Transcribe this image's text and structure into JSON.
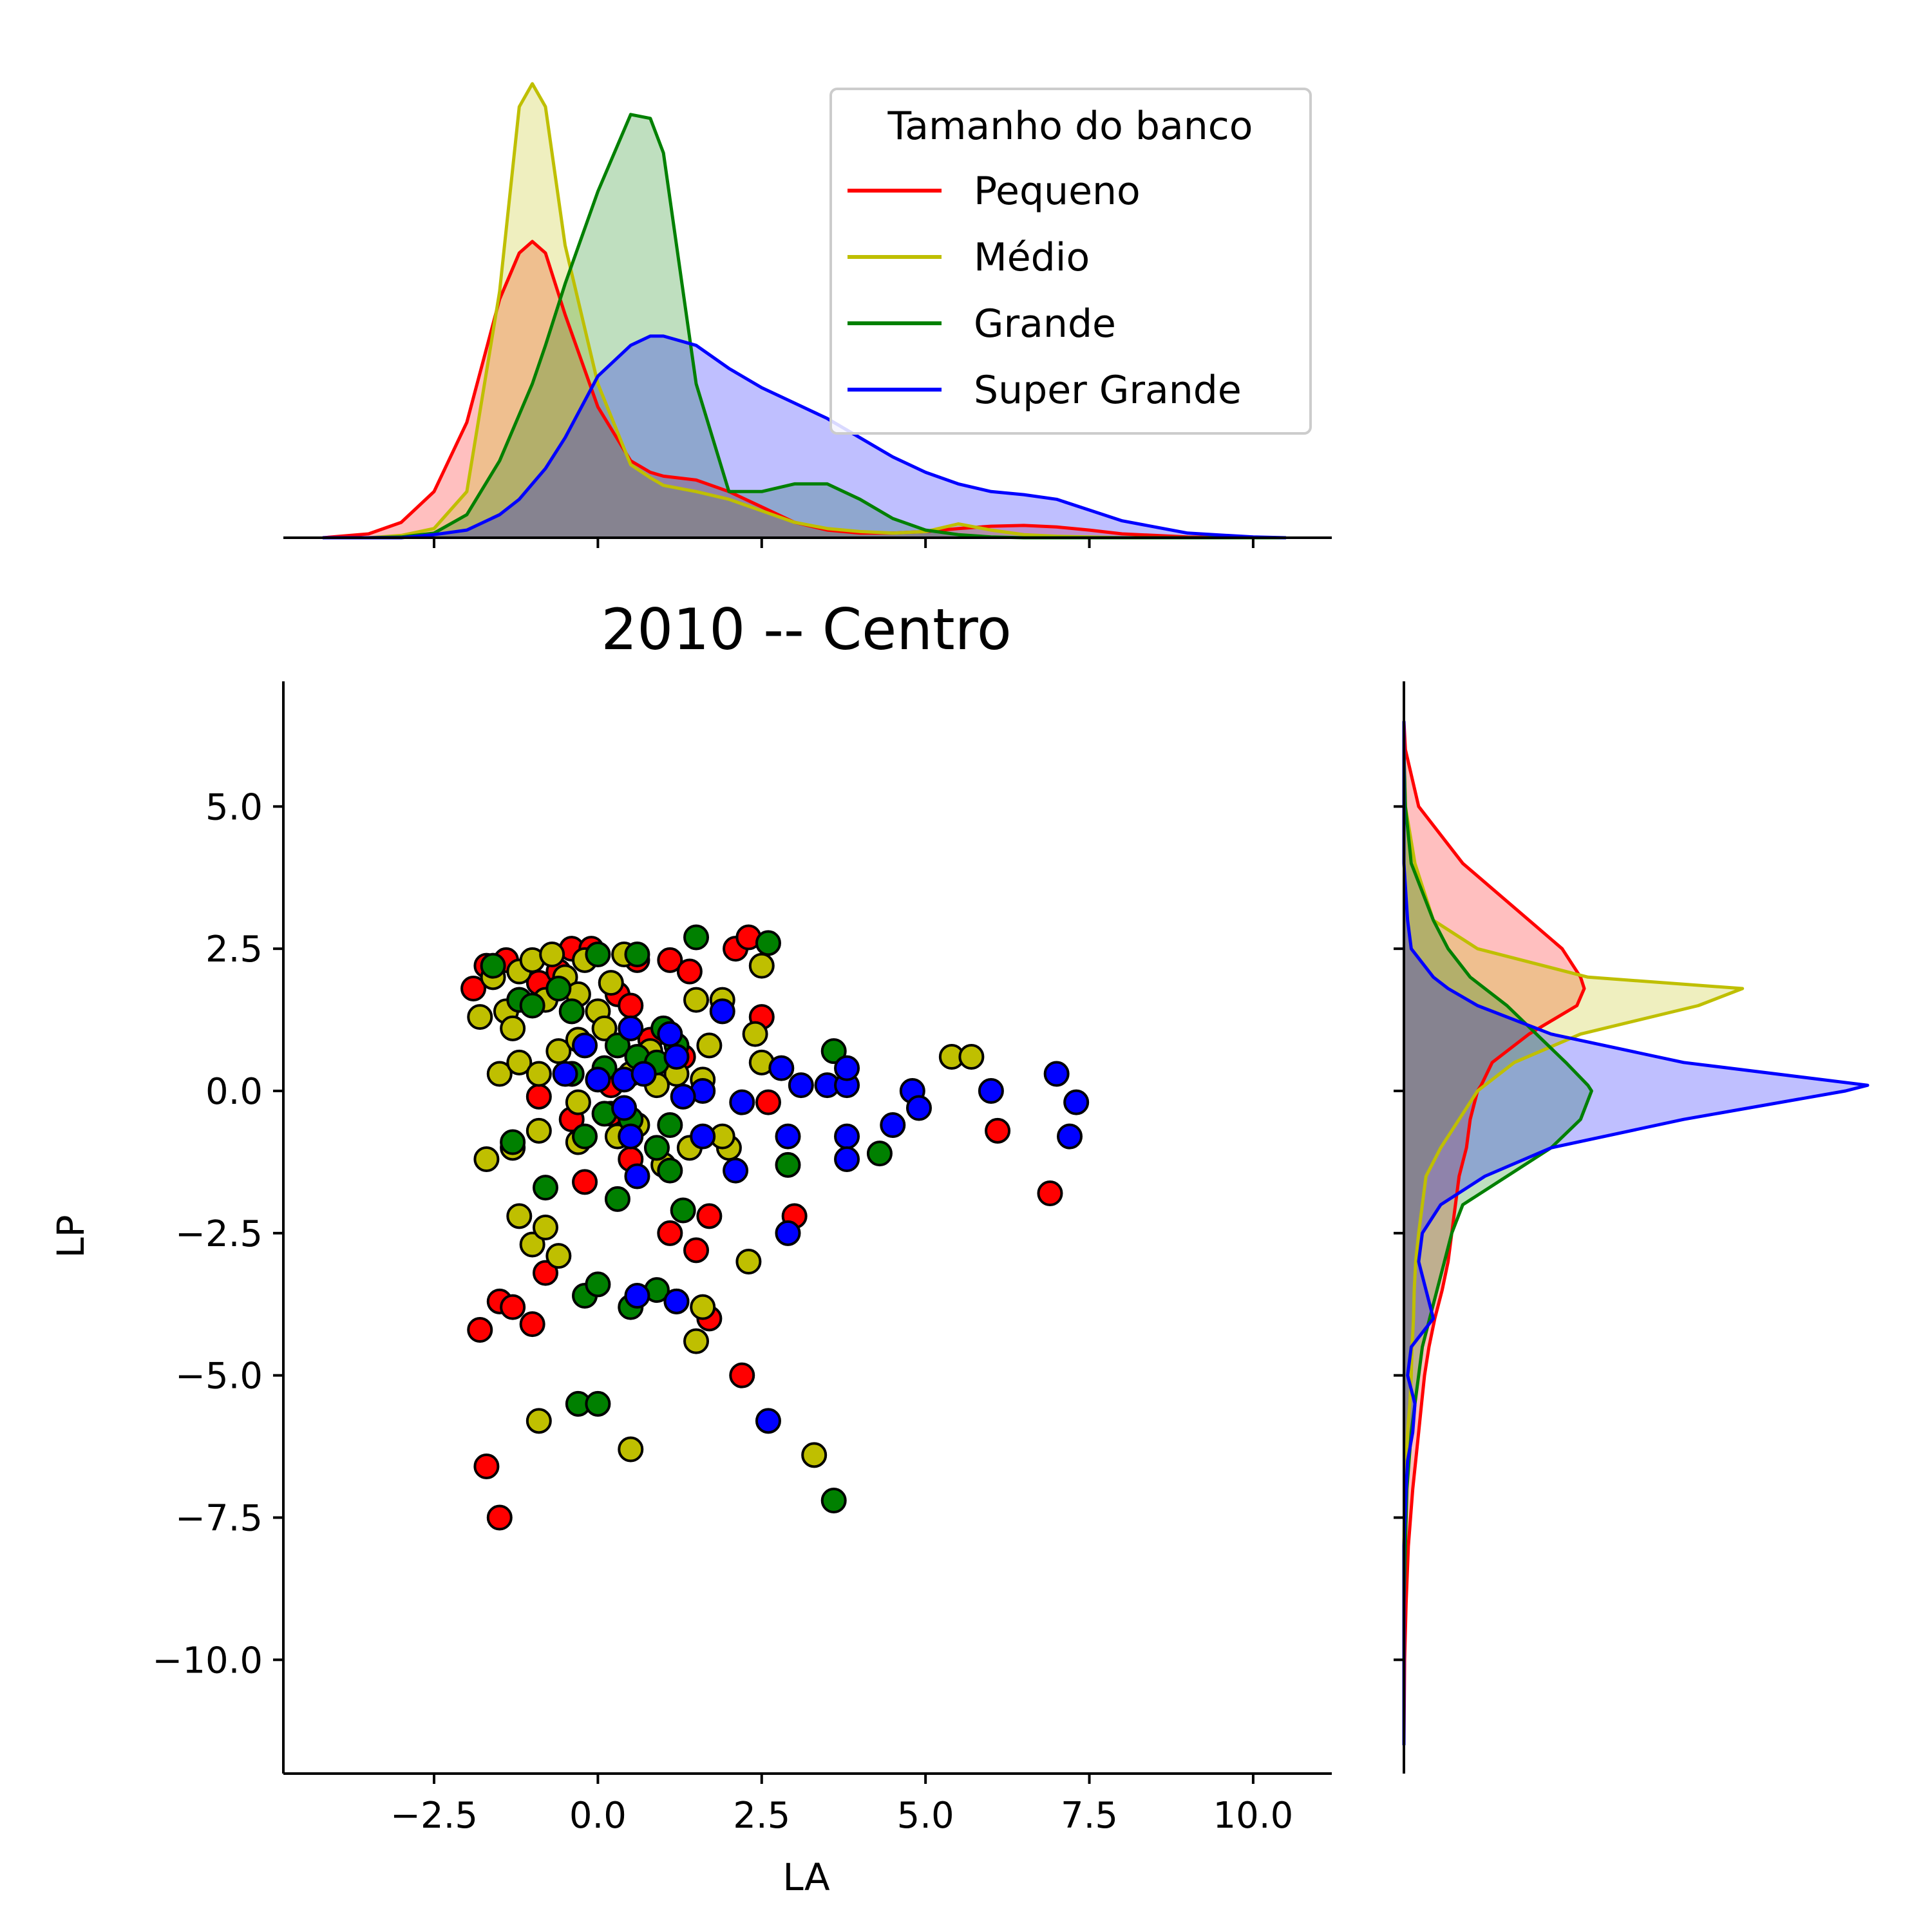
{
  "chart_data": {
    "type": "scatter",
    "title": "2010 -- Centro",
    "xlabel": "LA",
    "ylabel": "LP",
    "xlim": [
      -4.8,
      11.2
    ],
    "ylim": [
      -12.0,
      7.2
    ],
    "xticks": [
      -2.5,
      0.0,
      2.5,
      5.0,
      7.5,
      10.0
    ],
    "xtick_labels": [
      "−2.5",
      "0.0",
      "2.5",
      "5.0",
      "7.5",
      "10.0"
    ],
    "yticks": [
      5.0,
      2.5,
      0.0,
      -2.5,
      -5.0,
      -7.5,
      -10.0
    ],
    "ytick_labels": [
      "5.0",
      "2.5",
      "0.0",
      "−2.5",
      "−5.0",
      "−7.5",
      "−10.0"
    ],
    "grid": false,
    "legend": {
      "title": "Tamanho do banco",
      "placement": "top-right of top marginal"
    },
    "series": [
      {
        "name": "Pequeno",
        "color": "#ff0000",
        "points": [
          [
            -1.9,
            1.8
          ],
          [
            -1.7,
            2.2
          ],
          [
            -1.4,
            2.3
          ],
          [
            -1.2,
            1.6
          ],
          [
            -0.9,
            1.9
          ],
          [
            -0.6,
            2.1
          ],
          [
            -0.4,
            2.5
          ],
          [
            -0.1,
            2.5
          ],
          [
            0.3,
            1.7
          ],
          [
            0.5,
            1.5
          ],
          [
            0.6,
            2.3
          ],
          [
            1.1,
            2.3
          ],
          [
            1.4,
            2.1
          ],
          [
            2.1,
            2.5
          ],
          [
            2.3,
            2.7
          ],
          [
            2.5,
            1.3
          ],
          [
            -0.9,
            -0.1
          ],
          [
            -0.4,
            -0.5
          ],
          [
            -0.2,
            -1.6
          ],
          [
            0.2,
            -0.4
          ],
          [
            0.5,
            -1.2
          ],
          [
            1.1,
            -2.5
          ],
          [
            1.5,
            -2.8
          ],
          [
            1.7,
            -2.2
          ],
          [
            2.6,
            -0.2
          ],
          [
            3.0,
            -2.2
          ],
          [
            6.1,
            -0.7
          ],
          [
            6.9,
            -1.8
          ],
          [
            -1.8,
            -4.2
          ],
          [
            -1.5,
            -3.7
          ],
          [
            -1.3,
            -3.8
          ],
          [
            -1.0,
            -4.1
          ],
          [
            -0.8,
            -3.2
          ],
          [
            1.7,
            -4.0
          ],
          [
            2.2,
            -5.0
          ],
          [
            -1.7,
            -6.6
          ],
          [
            -1.5,
            -7.5
          ],
          [
            0.2,
            0.1
          ],
          [
            0.8,
            0.9
          ],
          [
            1.3,
            0.6
          ]
        ]
      },
      {
        "name": "Médio",
        "color": "#bfbf00",
        "points": [
          [
            -1.8,
            1.3
          ],
          [
            -1.6,
            2.0
          ],
          [
            -1.4,
            1.4
          ],
          [
            -1.3,
            1.1
          ],
          [
            -1.2,
            2.1
          ],
          [
            -1.0,
            2.3
          ],
          [
            -0.8,
            1.6
          ],
          [
            -0.7,
            2.4
          ],
          [
            -0.5,
            2.0
          ],
          [
            -0.3,
            1.7
          ],
          [
            -0.2,
            2.3
          ],
          [
            0.0,
            1.4
          ],
          [
            0.2,
            1.9
          ],
          [
            0.4,
            2.4
          ],
          [
            -1.5,
            0.3
          ],
          [
            -1.2,
            0.5
          ],
          [
            -0.9,
            0.3
          ],
          [
            -0.6,
            0.7
          ],
          [
            -0.3,
            0.9
          ],
          [
            0.1,
            1.1
          ],
          [
            0.5,
            0.3
          ],
          [
            0.8,
            0.7
          ],
          [
            1.2,
            0.3
          ],
          [
            1.6,
            0.2
          ],
          [
            1.7,
            0.8
          ],
          [
            1.9,
            1.6
          ],
          [
            2.4,
            1.0
          ],
          [
            2.5,
            0.5
          ],
          [
            2.5,
            2.2
          ],
          [
            1.5,
            1.6
          ],
          [
            -1.7,
            -1.2
          ],
          [
            -1.3,
            -1.0
          ],
          [
            -0.9,
            -0.7
          ],
          [
            -0.3,
            -0.9
          ],
          [
            -0.3,
            -0.2
          ],
          [
            0.3,
            -0.8
          ],
          [
            0.6,
            -0.6
          ],
          [
            1.0,
            -1.3
          ],
          [
            1.4,
            -1.0
          ],
          [
            2.0,
            -1.0
          ],
          [
            1.9,
            -0.8
          ],
          [
            -1.2,
            -2.2
          ],
          [
            -1.0,
            -2.7
          ],
          [
            -0.8,
            -2.4
          ],
          [
            -0.6,
            -2.9
          ],
          [
            2.3,
            -3.0
          ],
          [
            1.6,
            -3.8
          ],
          [
            1.5,
            -4.4
          ],
          [
            -0.9,
            -5.8
          ],
          [
            0.5,
            -6.3
          ],
          [
            3.3,
            -6.4
          ],
          [
            5.4,
            0.6
          ],
          [
            5.7,
            0.6
          ],
          [
            0.9,
            0.1
          ]
        ]
      },
      {
        "name": "Grande",
        "color": "#008000",
        "points": [
          [
            -1.6,
            2.2
          ],
          [
            -1.2,
            1.6
          ],
          [
            -1.0,
            1.5
          ],
          [
            -0.6,
            1.8
          ],
          [
            -0.4,
            1.4
          ],
          [
            0.0,
            2.4
          ],
          [
            0.6,
            2.4
          ],
          [
            1.0,
            1.1
          ],
          [
            1.5,
            2.7
          ],
          [
            2.6,
            2.6
          ],
          [
            0.3,
            0.8
          ],
          [
            0.6,
            0.6
          ],
          [
            1.2,
            0.8
          ],
          [
            0.9,
            0.5
          ],
          [
            -0.4,
            0.3
          ],
          [
            0.1,
            0.4
          ],
          [
            3.6,
            0.7
          ],
          [
            -1.3,
            -0.9
          ],
          [
            -0.2,
            -0.8
          ],
          [
            0.1,
            -0.4
          ],
          [
            0.5,
            -0.5
          ],
          [
            1.1,
            -0.6
          ],
          [
            1.1,
            -1.4
          ],
          [
            0.9,
            -1.0
          ],
          [
            0.3,
            -1.9
          ],
          [
            -0.8,
            -1.7
          ],
          [
            2.9,
            -1.3
          ],
          [
            4.3,
            -1.1
          ],
          [
            1.3,
            -2.1
          ],
          [
            -0.2,
            -3.6
          ],
          [
            0.0,
            -3.4
          ],
          [
            0.5,
            -3.8
          ],
          [
            0.9,
            -3.5
          ],
          [
            1.2,
            -3.7
          ],
          [
            -0.3,
            -5.5
          ],
          [
            0.0,
            -5.5
          ],
          [
            3.6,
            -7.2
          ]
        ]
      },
      {
        "name": "Super Grande",
        "color": "#0000ff",
        "points": [
          [
            -0.2,
            0.8
          ],
          [
            0.5,
            1.1
          ],
          [
            1.1,
            1.0
          ],
          [
            1.9,
            1.4
          ],
          [
            -0.5,
            0.3
          ],
          [
            0.0,
            0.2
          ],
          [
            0.4,
            0.2
          ],
          [
            0.7,
            0.3
          ],
          [
            1.2,
            0.6
          ],
          [
            1.6,
            0.0
          ],
          [
            2.2,
            -0.2
          ],
          [
            2.8,
            0.4
          ],
          [
            3.1,
            0.1
          ],
          [
            3.5,
            0.1
          ],
          [
            3.8,
            0.1
          ],
          [
            3.8,
            0.4
          ],
          [
            4.8,
            0.0
          ],
          [
            4.9,
            -0.3
          ],
          [
            6.0,
            0.0
          ],
          [
            7.0,
            0.3
          ],
          [
            7.3,
            -0.2
          ],
          [
            0.4,
            -0.3
          ],
          [
            0.5,
            -0.8
          ],
          [
            0.6,
            -1.5
          ],
          [
            1.3,
            -0.1
          ],
          [
            1.6,
            -0.8
          ],
          [
            2.1,
            -1.4
          ],
          [
            2.9,
            -0.8
          ],
          [
            3.8,
            -0.8
          ],
          [
            3.8,
            -1.2
          ],
          [
            4.5,
            -0.6
          ],
          [
            7.2,
            -0.8
          ],
          [
            2.9,
            -2.5
          ],
          [
            0.6,
            -3.6
          ],
          [
            1.2,
            -3.7
          ],
          [
            2.6,
            -5.8
          ]
        ]
      }
    ],
    "marginal_x_kde": {
      "x": [
        -4.2,
        -3.5,
        -3.0,
        -2.5,
        -2.0,
        -1.5,
        -1.2,
        -1.0,
        -0.8,
        -0.5,
        0.0,
        0.5,
        0.8,
        1.0,
        1.5,
        2.0,
        2.5,
        3.0,
        3.5,
        4.0,
        4.5,
        5.0,
        5.5,
        6.0,
        6.5,
        7.0,
        7.5,
        8.0,
        9.0,
        10.0,
        10.5
      ],
      "series": [
        {
          "name": "Pequeno",
          "color": "#ff0000",
          "fill": "rgba(255,0,0,0.25)",
          "density": [
            0.0,
            0.005,
            0.02,
            0.06,
            0.15,
            0.31,
            0.37,
            0.385,
            0.37,
            0.29,
            0.17,
            0.1,
            0.085,
            0.08,
            0.075,
            0.06,
            0.04,
            0.02,
            0.01,
            0.006,
            0.006,
            0.008,
            0.012,
            0.015,
            0.016,
            0.014,
            0.01,
            0.005,
            0.001,
            0.0,
            0.0
          ]
        },
        {
          "name": "Médio",
          "color": "#bfbf00",
          "fill": "rgba(191,191,0,0.25)",
          "density": [
            0.0,
            0.0,
            0.003,
            0.012,
            0.06,
            0.32,
            0.56,
            0.59,
            0.56,
            0.38,
            0.2,
            0.095,
            0.078,
            0.068,
            0.06,
            0.05,
            0.035,
            0.02,
            0.012,
            0.008,
            0.006,
            0.008,
            0.018,
            0.01,
            0.004,
            0.002,
            0.001,
            0.0,
            0.0,
            0.0,
            0.0
          ]
        },
        {
          "name": "Grande",
          "color": "#008000",
          "fill": "rgba(0,128,0,0.25)",
          "density": [
            0.0,
            0.0,
            0.001,
            0.006,
            0.03,
            0.1,
            0.16,
            0.2,
            0.25,
            0.33,
            0.45,
            0.55,
            0.545,
            0.5,
            0.2,
            0.06,
            0.06,
            0.07,
            0.07,
            0.05,
            0.025,
            0.01,
            0.004,
            0.001,
            0.0,
            0.0,
            0.0,
            0.0,
            0.0,
            0.0,
            0.0
          ]
        },
        {
          "name": "Super Grande",
          "color": "#0000ff",
          "fill": "rgba(0,0,255,0.25)",
          "density": [
            0.0,
            0.0,
            0.0,
            0.004,
            0.01,
            0.03,
            0.05,
            0.07,
            0.09,
            0.13,
            0.21,
            0.25,
            0.262,
            0.262,
            0.25,
            0.22,
            0.195,
            0.175,
            0.155,
            0.13,
            0.105,
            0.085,
            0.07,
            0.06,
            0.056,
            0.05,
            0.036,
            0.022,
            0.006,
            0.001,
            0.0
          ]
        }
      ]
    },
    "marginal_y_kde": {
      "y": [
        6.5,
        6.0,
        5.0,
        4.0,
        3.0,
        2.5,
        2.0,
        1.8,
        1.5,
        1.0,
        0.5,
        0.1,
        0.0,
        -0.5,
        -1.0,
        -1.5,
        -2.0,
        -2.5,
        -3.0,
        -3.5,
        -4.0,
        -4.5,
        -5.0,
        -5.5,
        -6.0,
        -6.5,
        -7.0,
        -8.0,
        -9.0,
        -10.0,
        -11.5
      ],
      "series": [
        {
          "name": "Pequeno",
          "color": "#ff0000",
          "fill": "rgba(255,0,0,0.25)",
          "density": [
            0.0,
            0.002,
            0.02,
            0.08,
            0.17,
            0.215,
            0.24,
            0.245,
            0.235,
            0.17,
            0.12,
            0.105,
            0.1,
            0.09,
            0.085,
            0.075,
            0.07,
            0.065,
            0.06,
            0.052,
            0.042,
            0.034,
            0.028,
            0.024,
            0.02,
            0.016,
            0.012,
            0.006,
            0.003,
            0.001,
            0.0
          ]
        },
        {
          "name": "Médio",
          "color": "#bfbf00",
          "fill": "rgba(191,191,0,0.25)",
          "density": [
            0.0,
            0.0,
            0.002,
            0.015,
            0.04,
            0.1,
            0.25,
            0.46,
            0.4,
            0.24,
            0.15,
            0.11,
            0.1,
            0.075,
            0.05,
            0.03,
            0.025,
            0.02,
            0.016,
            0.014,
            0.013,
            0.011,
            0.01,
            0.008,
            0.005,
            0.003,
            0.001,
            0.0,
            0.0,
            0.0,
            0.0
          ]
        },
        {
          "name": "Grande",
          "color": "#008000",
          "fill": "rgba(0,128,0,0.25)",
          "density": [
            0.0,
            0.0,
            0.002,
            0.01,
            0.04,
            0.06,
            0.09,
            0.11,
            0.14,
            0.18,
            0.22,
            0.25,
            0.255,
            0.24,
            0.2,
            0.14,
            0.08,
            0.065,
            0.055,
            0.045,
            0.035,
            0.025,
            0.02,
            0.015,
            0.01,
            0.007,
            0.004,
            0.002,
            0.0,
            0.0,
            0.0
          ]
        },
        {
          "name": "Super Grande",
          "color": "#0000ff",
          "fill": "rgba(0,0,255,0.25)",
          "density": [
            0.0,
            0.0,
            0.0,
            0.0,
            0.005,
            0.01,
            0.04,
            0.06,
            0.1,
            0.2,
            0.38,
            0.63,
            0.6,
            0.38,
            0.2,
            0.11,
            0.05,
            0.025,
            0.02,
            0.03,
            0.04,
            0.01,
            0.005,
            0.015,
            0.012,
            0.005,
            0.003,
            0.0,
            0.0,
            0.0,
            0.0
          ]
        }
      ]
    }
  }
}
